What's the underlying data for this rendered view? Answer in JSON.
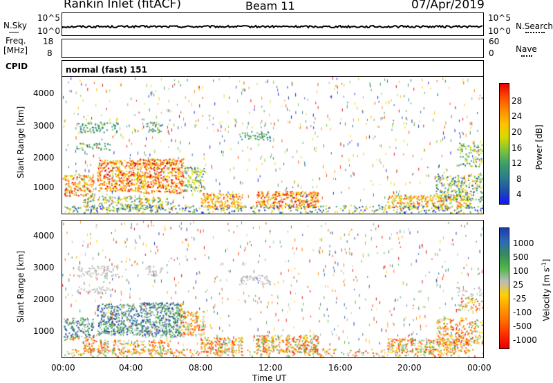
{
  "header": {
    "site": "Rankin Inlet (fitACF)",
    "beam": "Beam 11",
    "date": "07/Apr/2019"
  },
  "noise_panel": {
    "left_label": "N.Sky",
    "right_label": "N.Search",
    "left_ticks": [
      "10^5",
      "10^0"
    ],
    "right_ticks": [
      "10^5",
      "10^0"
    ]
  },
  "freq_panel": {
    "left_label_1": "Freq.",
    "left_label_2": "[MHz]",
    "right_label": "Nave",
    "left_ticks": [
      "18",
      "8"
    ],
    "right_ticks": [
      "60",
      "0"
    ]
  },
  "cpid": {
    "label": "CPID",
    "text": "normal (fast) 151"
  },
  "chart_data": [
    {
      "type": "heatmap",
      "name": "power",
      "ylabel": "Slant Range [km]",
      "y_ticks": [
        "4000",
        "3000",
        "2000",
        "1000"
      ],
      "colorbar_label": "Power [dB]",
      "colorbar_ticks": [
        "28",
        "24",
        "20",
        "16",
        "12",
        "8",
        "4"
      ],
      "colorbar_colors": [
        "#e60000",
        "#ff4a00",
        "#ff8c00",
        "#ffc000",
        "#d9d900",
        "#7ec33a",
        "#3c9e6a",
        "#2c7d8a",
        "#1f50a8",
        "#1414ff"
      ],
      "xlim": [
        "00:00",
        "24:00"
      ],
      "ylim": [
        180,
        4500
      ]
    },
    {
      "type": "heatmap",
      "name": "velocity",
      "ylabel": "Slant Range [km]",
      "y_ticks": [
        "4000",
        "3000",
        "2000",
        "1000"
      ],
      "colorbar_label": "Velocity [m s^-1]",
      "colorbar_ticks": [
        "1000",
        "500",
        "100",
        "25",
        "-25",
        "-100",
        "-500",
        "-1000"
      ],
      "colorbar_colors": [
        "#1f3aa8",
        "#2b6cb8",
        "#3a8a5a",
        "#4fb848",
        "#bcbcbc",
        "#ffd000",
        "#ff9a00",
        "#ff6a00",
        "#ff2a00",
        "#e60000"
      ],
      "xlim": [
        "00:00",
        "24:00"
      ],
      "ylim": [
        180,
        4500
      ]
    }
  ],
  "x_axis": {
    "ticks": [
      "00:00",
      "04:00",
      "08:00",
      "12:00",
      "16:00",
      "20:00",
      "00:00"
    ],
    "label": "Time UT"
  }
}
